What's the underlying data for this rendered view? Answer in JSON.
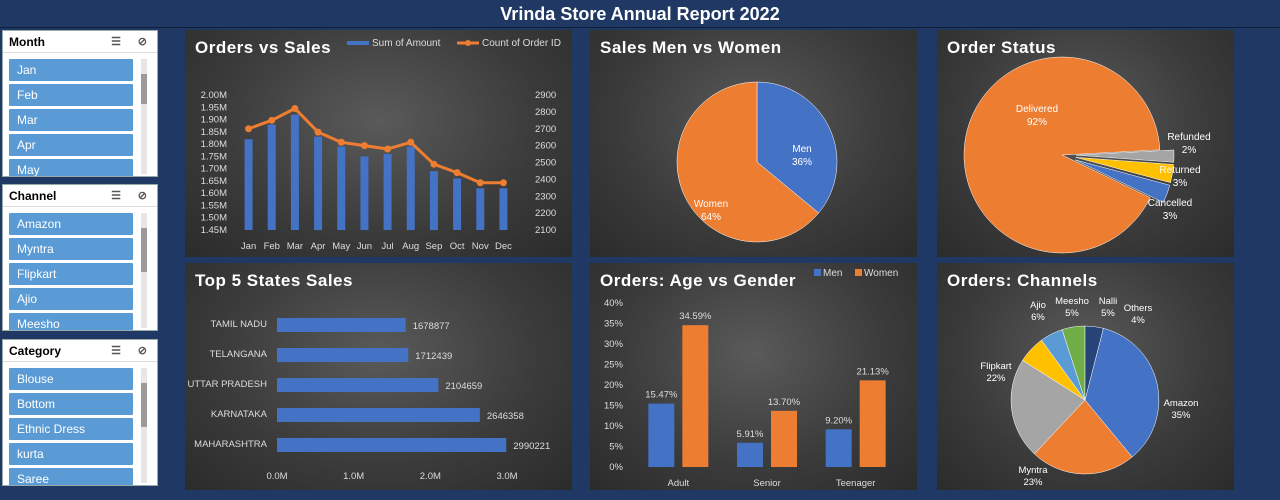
{
  "header": {
    "title": "Vrinda Store Annual Report 2022"
  },
  "slicers": [
    {
      "title": "Month",
      "items": [
        "Jan",
        "Feb",
        "Mar",
        "Apr",
        "May"
      ]
    },
    {
      "title": "Channel",
      "items": [
        "Amazon",
        "Myntra",
        "Flipkart",
        "Ajio",
        "Meesho"
      ]
    },
    {
      "title": "Category",
      "items": [
        "Blouse",
        "Bottom",
        "Ethnic Dress",
        "kurta",
        "Saree"
      ]
    }
  ],
  "icons": {
    "multiselect": "multi-select-icon",
    "clear_filter": "clear-filter-icon"
  },
  "colors": {
    "blue": "#4472c4",
    "orange": "#ed7d31",
    "gray": "#a5a5a5",
    "yellow": "#ffc000",
    "lightblue": "#5b9bd5",
    "green": "#70ad47",
    "darkblue": "#264478"
  },
  "panels": {
    "orders_sales": "Orders vs Sales",
    "men_women": "Sales Men vs Women",
    "order_status": "Order Status",
    "top_states": "Top 5 States Sales",
    "age_gender": "Orders: Age vs Gender",
    "channels": "Orders: Channels"
  },
  "chart_data": [
    {
      "id": "orders_sales",
      "type": "bar+line",
      "title": "Orders vs Sales",
      "categories": [
        "Jan",
        "Feb",
        "Mar",
        "Apr",
        "May",
        "Jun",
        "Jul",
        "Aug",
        "Sep",
        "Oct",
        "Nov",
        "Dec"
      ],
      "series": [
        {
          "name": "Sum of Amount",
          "type": "bar",
          "axis": "left",
          "values": [
            1.82,
            1.88,
            1.92,
            1.83,
            1.79,
            1.75,
            1.76,
            1.79,
            1.69,
            1.66,
            1.62,
            1.62
          ]
        },
        {
          "name": "Count of Order ID",
          "type": "line",
          "axis": "right",
          "values": [
            2700,
            2750,
            2820,
            2680,
            2620,
            2600,
            2580,
            2620,
            2490,
            2440,
            2380,
            2380
          ]
        }
      ],
      "yleft_ticks": [
        "1.45M",
        "1.50M",
        "1.55M",
        "1.60M",
        "1.65M",
        "1.70M",
        "1.75M",
        "1.80M",
        "1.85M",
        "1.90M",
        "1.95M",
        "2.00M"
      ],
      "yleft_range": [
        1.45,
        2.0
      ],
      "yright_ticks": [
        "2100",
        "2200",
        "2300",
        "2400",
        "2500",
        "2600",
        "2700",
        "2800",
        "2900"
      ],
      "yright_range": [
        2100,
        2900
      ],
      "legend": "top"
    },
    {
      "id": "men_women",
      "type": "pie",
      "title": "Sales Men vs Women",
      "slices": [
        {
          "name": "Men",
          "value": 36,
          "label": "36%"
        },
        {
          "name": "Women",
          "value": 64,
          "label": "64%"
        }
      ]
    },
    {
      "id": "order_status",
      "type": "pie",
      "title": "Order Status",
      "slices": [
        {
          "name": "Delivered",
          "value": 92,
          "label": "92%"
        },
        {
          "name": "Refunded",
          "value": 2,
          "label": "2%"
        },
        {
          "name": "Returned",
          "value": 3,
          "label": "3%"
        },
        {
          "name": "Cancelled",
          "value": 3,
          "label": "3%"
        }
      ]
    },
    {
      "id": "top_states",
      "type": "bar",
      "orientation": "horizontal",
      "title": "Top 5 States Sales",
      "categories": [
        "TAMIL NADU",
        "TELANGANA",
        "UTTAR PRADESH",
        "KARNATAKA",
        "MAHARASHTRA"
      ],
      "values": [
        1678877,
        1712439,
        2104659,
        2646358,
        2990221
      ],
      "data_labels": [
        "1678877",
        "1712439",
        "2104659",
        "2646358",
        "2990221"
      ],
      "xticks": [
        "0.0M",
        "1.0M",
        "2.0M",
        "3.0M"
      ],
      "xlim": [
        0,
        3000000
      ]
    },
    {
      "id": "age_gender",
      "type": "bar",
      "title": "Orders: Age vs Gender",
      "categories": [
        "Adult",
        "Senior",
        "Teenager"
      ],
      "series": [
        {
          "name": "Men",
          "values": [
            15.47,
            5.91,
            9.2
          ],
          "labels": [
            "15.47%",
            "5.91%",
            "9.20%"
          ]
        },
        {
          "name": "Women",
          "values": [
            34.59,
            13.7,
            21.13
          ],
          "labels": [
            "34.59%",
            "13.70%",
            "21.13%"
          ]
        }
      ],
      "yticks": [
        "0%",
        "5%",
        "10%",
        "15%",
        "20%",
        "25%",
        "30%",
        "35%",
        "40%"
      ],
      "ylim": [
        0,
        40
      ],
      "legend": "top-right"
    },
    {
      "id": "channels",
      "type": "pie",
      "title": "Orders: Channels",
      "slices": [
        {
          "name": "Amazon",
          "value": 35,
          "label": "35%"
        },
        {
          "name": "Myntra",
          "value": 23,
          "label": "23%"
        },
        {
          "name": "Flipkart",
          "value": 22,
          "label": "22%"
        },
        {
          "name": "Ajio",
          "value": 6,
          "label": "6%"
        },
        {
          "name": "Meesho",
          "value": 5,
          "label": "5%"
        },
        {
          "name": "Nalli",
          "value": 5,
          "label": "5%"
        },
        {
          "name": "Others",
          "value": 4,
          "label": "4%"
        }
      ]
    }
  ]
}
